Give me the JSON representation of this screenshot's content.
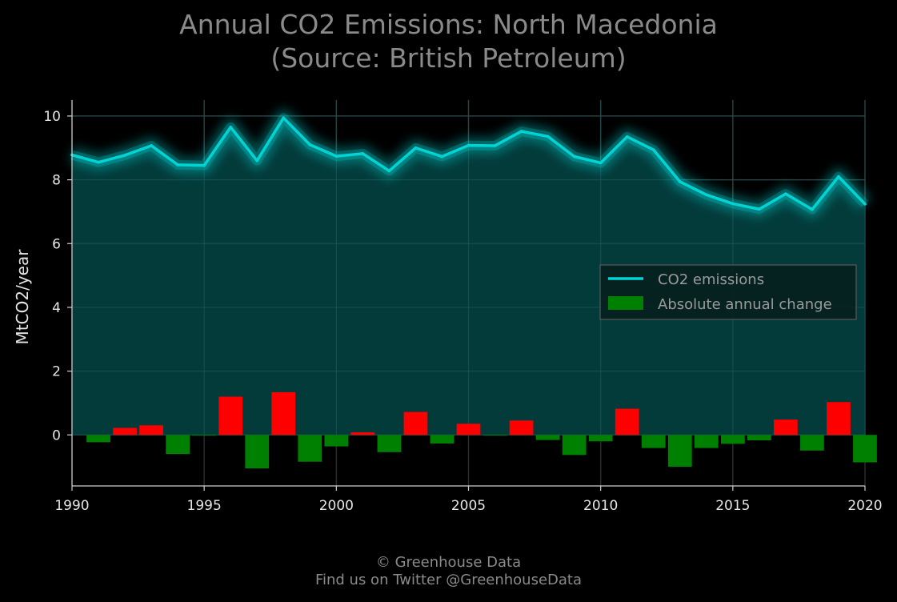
{
  "title_line1": "Annual CO2 Emissions: North Macedonia",
  "title_line2": "(Source: British Petroleum)",
  "footer_line1": "© Greenhouse Data",
  "footer_line2": "Find us on Twitter @GreenhouseData",
  "colors": {
    "background": "#000000",
    "line": "#00d4d4",
    "area": "#033d3d",
    "increase": "#ff0000",
    "decrease": "#008000",
    "text": "#8a8a8a"
  },
  "chart_data": {
    "type": "line",
    "ylabel": "MtCO2/year",
    "xlim": [
      1990,
      2020
    ],
    "ylim": [
      -1.6,
      10.5
    ],
    "xticks": [
      1990,
      1995,
      2000,
      2005,
      2010,
      2015,
      2020
    ],
    "yticks": [
      0,
      2,
      4,
      6,
      8,
      10
    ],
    "grid": true,
    "legend_position": "center-right",
    "x": [
      1990,
      1991,
      1992,
      1993,
      1994,
      1995,
      1996,
      1997,
      1998,
      1999,
      2000,
      2001,
      2002,
      2003,
      2004,
      2005,
      2006,
      2007,
      2008,
      2009,
      2010,
      2011,
      2012,
      2013,
      2014,
      2015,
      2016,
      2017,
      2018,
      2019,
      2020
    ],
    "series": [
      {
        "name": "CO2 emissions",
        "values": [
          8.78,
          8.55,
          8.77,
          9.07,
          8.47,
          8.45,
          9.65,
          8.6,
          9.94,
          9.1,
          8.74,
          8.82,
          8.28,
          9.0,
          8.73,
          9.08,
          9.07,
          9.52,
          9.36,
          8.73,
          8.53,
          9.35,
          8.94,
          7.94,
          7.53,
          7.25,
          7.08,
          7.56,
          7.07,
          8.1,
          7.24
        ]
      },
      {
        "name": "Absolute annual change",
        "values": [
          null,
          -0.23,
          0.22,
          0.3,
          -0.6,
          -0.02,
          1.2,
          -1.05,
          1.34,
          -0.84,
          -0.36,
          0.08,
          -0.54,
          0.72,
          -0.27,
          0.35,
          -0.01,
          0.45,
          -0.16,
          -0.63,
          -0.2,
          0.82,
          -0.41,
          -1.0,
          -0.41,
          -0.28,
          -0.17,
          0.48,
          -0.49,
          1.03,
          -0.86
        ]
      }
    ]
  }
}
